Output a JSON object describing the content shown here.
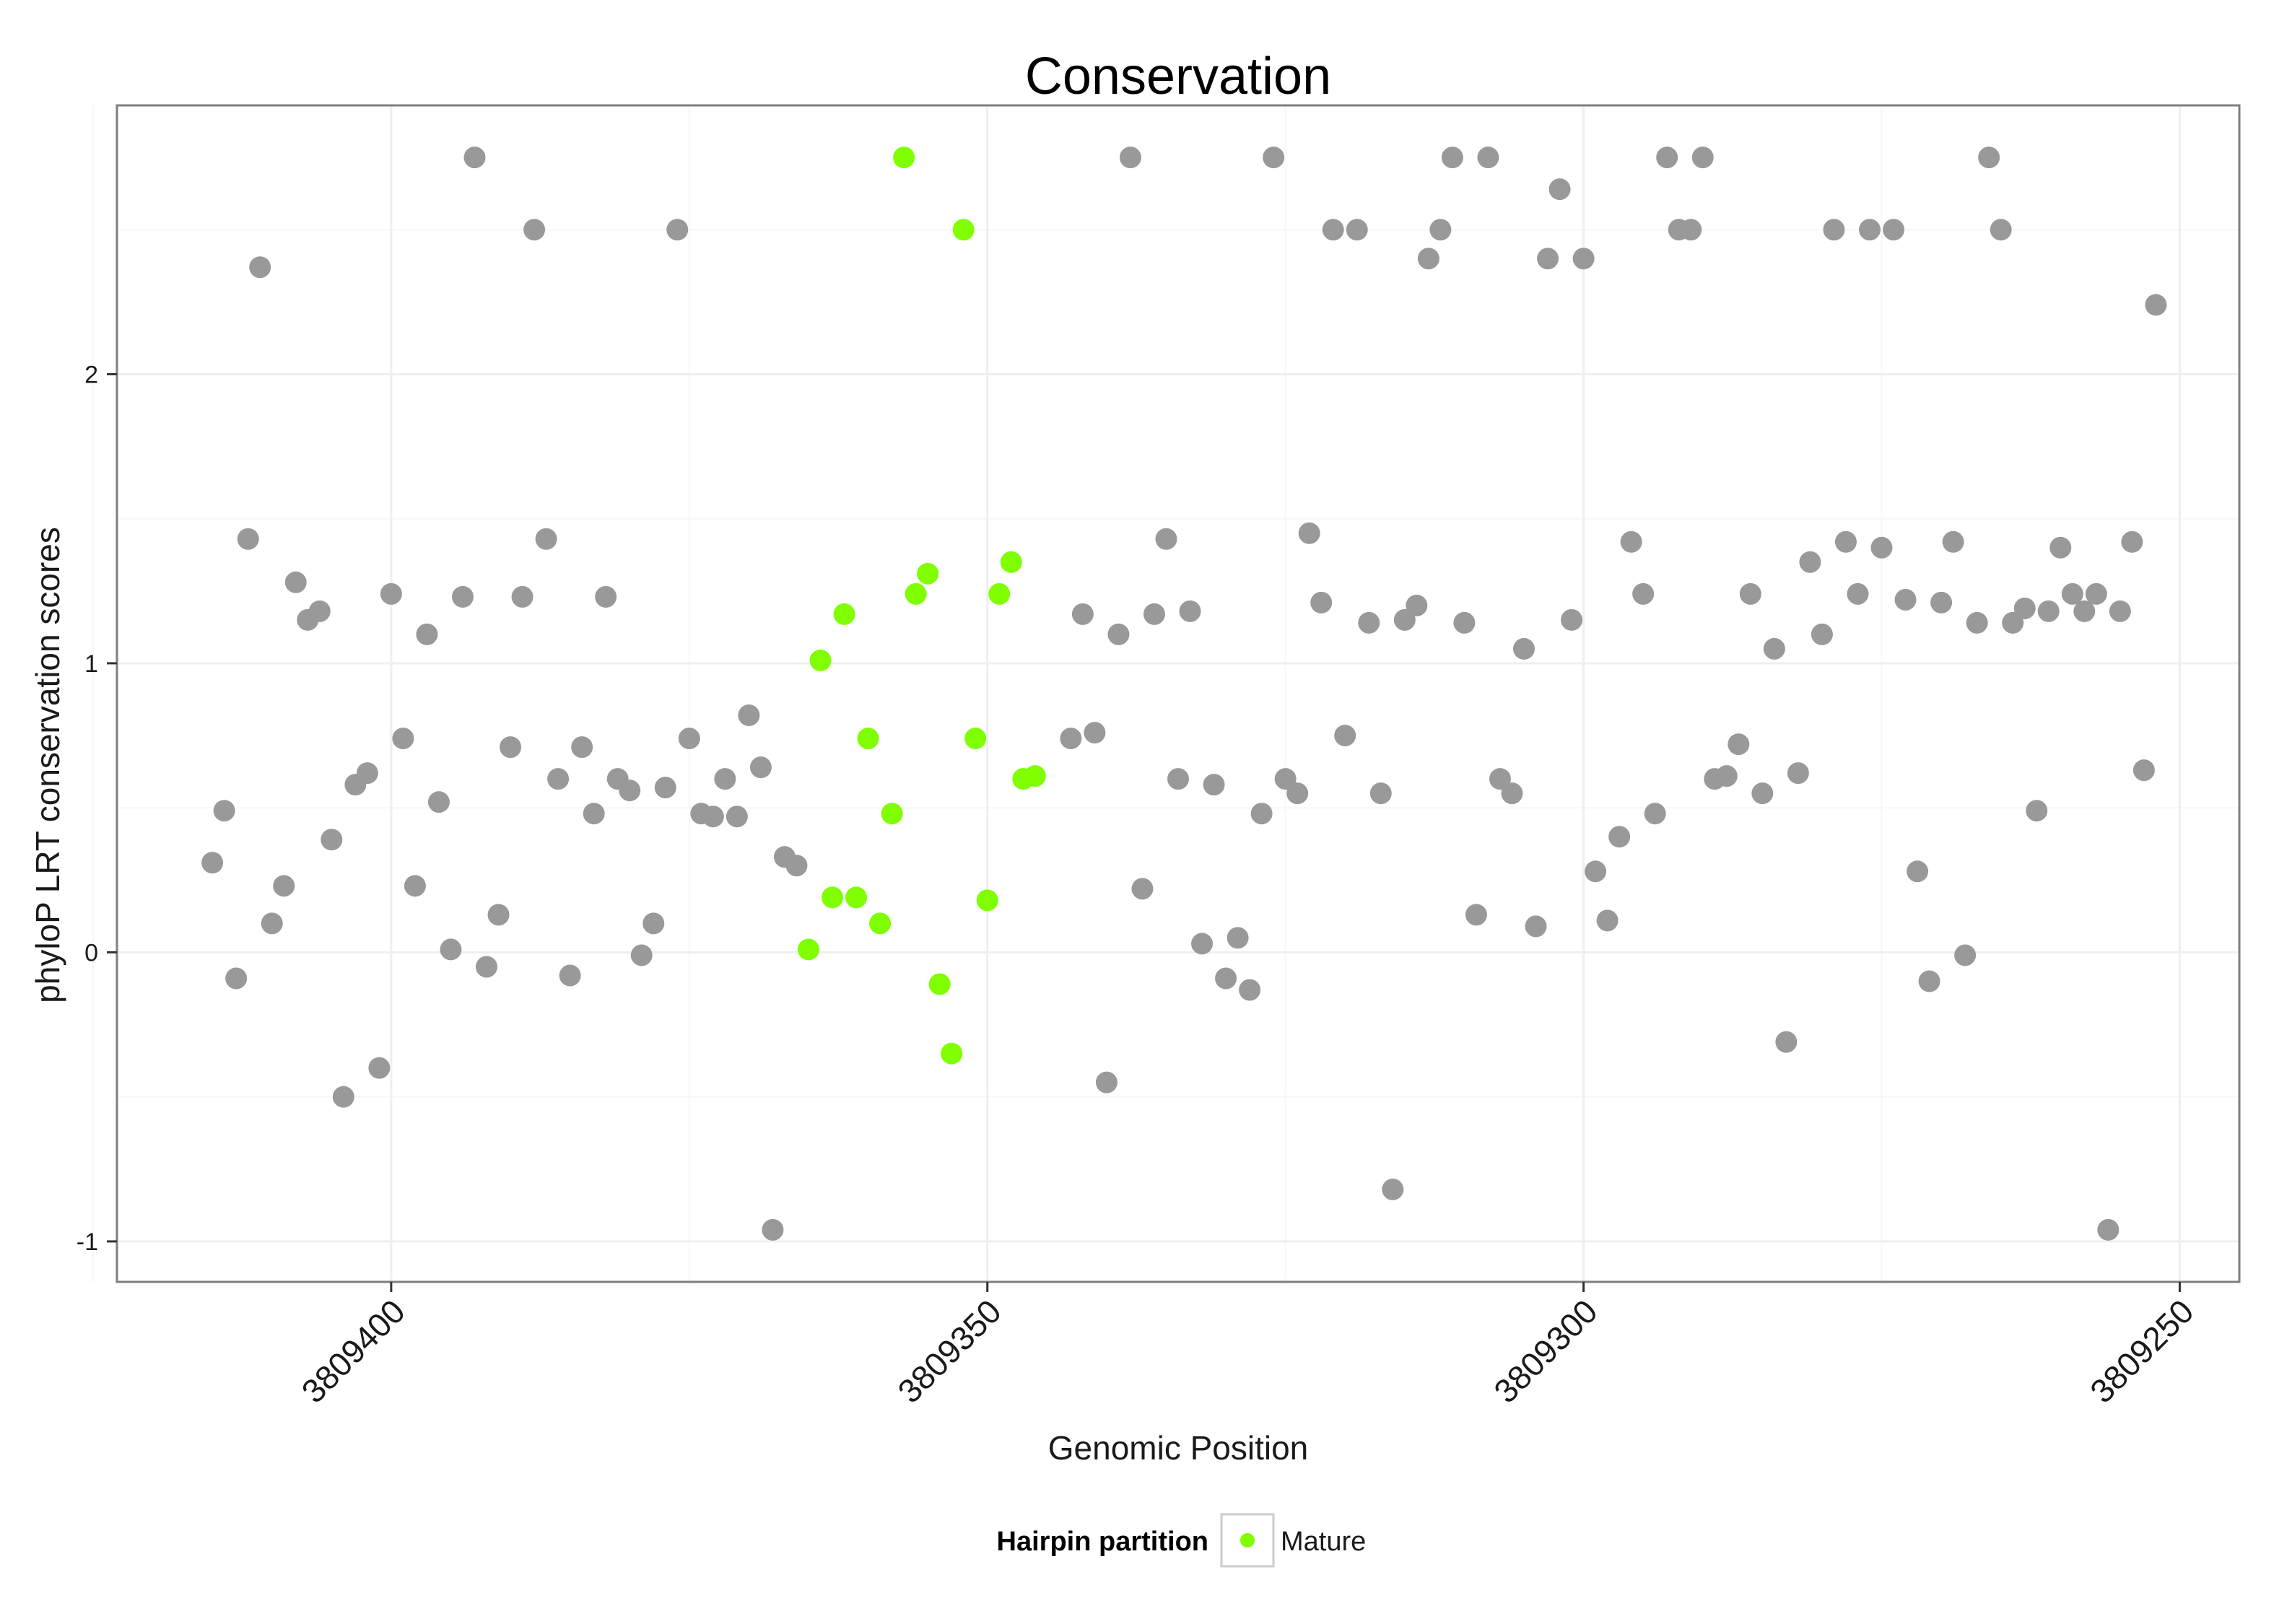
{
  "chart_data": {
    "type": "scatter",
    "title": "Conservation",
    "xlabel": "Genomic Position",
    "ylabel": "phyloP LRT conservation scores",
    "x_reversed": true,
    "xlim": [
      3809423,
      3809245
    ],
    "ylim": [
      -1.14,
      2.93
    ],
    "x_ticks": [
      3809400,
      3809350,
      3809300,
      3809250
    ],
    "x_tick_labels": [
      "3809400",
      "3809350",
      "3809300",
      "3809250"
    ],
    "y_ticks": [
      -1,
      0,
      1,
      2
    ],
    "y_tick_labels": [
      "-1",
      "0",
      "1",
      "2"
    ],
    "grid": true,
    "legend": {
      "title": "Hairpin partition",
      "position": "bottom",
      "entries": [
        {
          "label": "Mature",
          "color": "#7fff00"
        }
      ]
    },
    "series": [
      {
        "name": "",
        "color": "#999999",
        "points": [
          [
            3809415,
            0.31
          ],
          [
            3809414,
            0.49
          ],
          [
            3809413,
            -0.09
          ],
          [
            3809412,
            1.43
          ],
          [
            3809411,
            2.37
          ],
          [
            3809410,
            0.1
          ],
          [
            3809409,
            0.23
          ],
          [
            3809408,
            1.28
          ],
          [
            3809407,
            1.15
          ],
          [
            3809406,
            1.18
          ],
          [
            3809405,
            0.39
          ],
          [
            3809404,
            -0.5
          ],
          [
            3809403,
            0.58
          ],
          [
            3809402,
            0.62
          ],
          [
            3809401,
            -0.4
          ],
          [
            3809400,
            1.24
          ],
          [
            3809399,
            0.74
          ],
          [
            3809398,
            0.23
          ],
          [
            3809397,
            1.1
          ],
          [
            3809396,
            0.52
          ],
          [
            3809395,
            0.01
          ],
          [
            3809394,
            1.23
          ],
          [
            3809393,
            2.75
          ],
          [
            3809392,
            -0.05
          ],
          [
            3809391,
            0.13
          ],
          [
            3809390,
            0.71
          ],
          [
            3809389,
            1.23
          ],
          [
            3809388,
            2.5
          ],
          [
            3809387,
            1.43
          ],
          [
            3809386,
            0.6
          ],
          [
            3809385,
            -0.08
          ],
          [
            3809384,
            0.71
          ],
          [
            3809383,
            0.48
          ],
          [
            3809382,
            1.23
          ],
          [
            3809381,
            0.6
          ],
          [
            3809380,
            0.56
          ],
          [
            3809379,
            -0.01
          ],
          [
            3809378,
            0.1
          ],
          [
            3809377,
            0.57
          ],
          [
            3809376,
            2.5
          ],
          [
            3809375,
            0.74
          ],
          [
            3809374,
            0.48
          ],
          [
            3809373,
            0.47
          ],
          [
            3809372,
            0.6
          ],
          [
            3809371,
            0.47
          ],
          [
            3809370,
            0.82
          ],
          [
            3809369,
            0.64
          ],
          [
            3809368,
            -0.96
          ],
          [
            3809367,
            0.33
          ],
          [
            3809366,
            0.3
          ],
          [
            3809343,
            0.74
          ],
          [
            3809342,
            1.17
          ],
          [
            3809341,
            0.76
          ],
          [
            3809340,
            -0.45
          ],
          [
            3809339,
            1.1
          ],
          [
            3809338,
            2.75
          ],
          [
            3809337,
            0.22
          ],
          [
            3809336,
            1.17
          ],
          [
            3809335,
            1.43
          ],
          [
            3809334,
            0.6
          ],
          [
            3809333,
            1.18
          ],
          [
            3809332,
            0.03
          ],
          [
            3809331,
            0.58
          ],
          [
            3809330,
            -0.09
          ],
          [
            3809329,
            0.05
          ],
          [
            3809328,
            -0.13
          ],
          [
            3809327,
            0.48
          ],
          [
            3809326,
            2.75
          ],
          [
            3809325,
            0.6
          ],
          [
            3809324,
            0.55
          ],
          [
            3809323,
            1.45
          ],
          [
            3809322,
            1.21
          ],
          [
            3809321,
            2.5
          ],
          [
            3809320,
            0.75
          ],
          [
            3809319,
            2.5
          ],
          [
            3809318,
            1.14
          ],
          [
            3809317,
            0.55
          ],
          [
            3809316,
            -0.82
          ],
          [
            3809315,
            1.15
          ],
          [
            3809314,
            1.2
          ],
          [
            3809313,
            2.4
          ],
          [
            3809312,
            2.5
          ],
          [
            3809311,
            2.75
          ],
          [
            3809310,
            1.14
          ],
          [
            3809309,
            0.13
          ],
          [
            3809308,
            2.75
          ],
          [
            3809307,
            0.6
          ],
          [
            3809306,
            0.55
          ],
          [
            3809305,
            1.05
          ],
          [
            3809304,
            0.09
          ],
          [
            3809303,
            2.4
          ],
          [
            3809302,
            2.64
          ],
          [
            3809301,
            1.15
          ],
          [
            3809300,
            2.4
          ],
          [
            3809299,
            0.28
          ],
          [
            3809298,
            0.11
          ],
          [
            3809297,
            0.4
          ],
          [
            3809296,
            1.42
          ],
          [
            3809295,
            1.24
          ],
          [
            3809294,
            0.48
          ],
          [
            3809293,
            2.75
          ],
          [
            3809292,
            2.5
          ],
          [
            3809291,
            2.5
          ],
          [
            3809290,
            2.75
          ],
          [
            3809289,
            0.6
          ],
          [
            3809288,
            0.61
          ],
          [
            3809287,
            0.72
          ],
          [
            3809286,
            1.24
          ],
          [
            3809285,
            0.55
          ],
          [
            3809284,
            1.05
          ],
          [
            3809283,
            -0.31
          ],
          [
            3809282,
            0.62
          ],
          [
            3809281,
            1.35
          ],
          [
            3809280,
            1.1
          ],
          [
            3809279,
            2.5
          ],
          [
            3809278,
            1.42
          ],
          [
            3809277,
            1.24
          ],
          [
            3809276,
            2.5
          ],
          [
            3809275,
            1.4
          ],
          [
            3809274,
            2.5
          ],
          [
            3809273,
            1.22
          ],
          [
            3809272,
            0.28
          ],
          [
            3809271,
            -0.1
          ],
          [
            3809270,
            1.21
          ],
          [
            3809269,
            1.42
          ],
          [
            3809268,
            -0.01
          ],
          [
            3809267,
            1.14
          ],
          [
            3809266,
            2.75
          ],
          [
            3809265,
            2.5
          ],
          [
            3809264,
            1.14
          ],
          [
            3809263,
            1.19
          ],
          [
            3809262,
            0.49
          ],
          [
            3809261,
            1.18
          ],
          [
            3809260,
            1.4
          ],
          [
            3809259,
            1.24
          ],
          [
            3809258,
            1.18
          ],
          [
            3809257,
            1.24
          ],
          [
            3809256,
            -0.96
          ],
          [
            3809255,
            1.18
          ],
          [
            3809254,
            1.42
          ],
          [
            3809253,
            0.63
          ],
          [
            3809252,
            2.24
          ]
        ]
      },
      {
        "name": "Mature",
        "color": "#7fff00",
        "points": [
          [
            3809365,
            0.01
          ],
          [
            3809364,
            1.01
          ],
          [
            3809363,
            0.19
          ],
          [
            3809362,
            1.17
          ],
          [
            3809361,
            0.19
          ],
          [
            3809360,
            0.74
          ],
          [
            3809359,
            0.1
          ],
          [
            3809358,
            0.48
          ],
          [
            3809357,
            2.75
          ],
          [
            3809356,
            1.24
          ],
          [
            3809355,
            1.31
          ],
          [
            3809354,
            -0.11
          ],
          [
            3809353,
            -0.35
          ],
          [
            3809352,
            2.5
          ],
          [
            3809351,
            0.74
          ],
          [
            3809350,
            0.18
          ],
          [
            3809349,
            1.24
          ],
          [
            3809348,
            1.35
          ],
          [
            3809347,
            0.6
          ],
          [
            3809346,
            0.61
          ]
        ]
      }
    ]
  }
}
